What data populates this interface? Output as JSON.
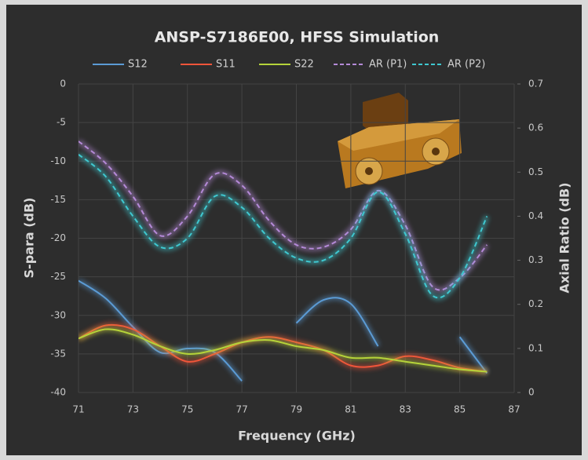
{
  "chart_data": {
    "type": "line",
    "title": "ANSP-S7186E00, HFSS Simulation",
    "x_label": "Frequency (GHz)",
    "y_label": "S-para (dB)",
    "y2_label": "Axial Ratio (dB)",
    "x": [
      71,
      72,
      73,
      74,
      75,
      76,
      77,
      78,
      79,
      80,
      81,
      82,
      83,
      84,
      85,
      86
    ],
    "xlim": [
      71,
      87
    ],
    "xticks": [
      71,
      73,
      75,
      77,
      79,
      81,
      83,
      85,
      87
    ],
    "ylim": [
      -40,
      0
    ],
    "yticks": [
      0,
      -5,
      -10,
      -15,
      -20,
      -25,
      -30,
      -35,
      -40
    ],
    "y2lim": [
      0,
      0.7
    ],
    "y2ticks": [
      0,
      0.1,
      0.2,
      0.3,
      0.4,
      0.5,
      0.6,
      0.7
    ],
    "grid": true,
    "series": [
      {
        "name": "S12",
        "color": "#5b9bd5",
        "values": [
          -25.5,
          -27.8,
          -31.5,
          -34.8,
          -34.3,
          -34.8,
          -38.5,
          null,
          -31,
          -28,
          -28.5,
          -34,
          null,
          null,
          -32.8,
          -37.5
        ]
      },
      {
        "name": "S11",
        "color": "#f0553a",
        "values": [
          -33,
          -31.3,
          -31.8,
          -34,
          -36,
          -35,
          -33.5,
          -32.8,
          -33.5,
          -34.5,
          -36.5,
          -36.5,
          -35.3,
          -35.8,
          -36.8,
          -37.3
        ]
      },
      {
        "name": "S22",
        "color": "#b5d33a",
        "values": [
          -33,
          -31.8,
          -32.5,
          -34,
          -35,
          -34.5,
          -33.5,
          -33.2,
          -34,
          -34.5,
          -35.5,
          -35.5,
          -36,
          -36.5,
          -37,
          -37.3
        ]
      },
      {
        "name": "AR (P1)",
        "color": "#b58ad8",
        "dashed": true,
        "axis": "y2",
        "values": [
          0.57,
          0.52,
          0.445,
          0.356,
          0.4,
          0.495,
          0.47,
          0.39,
          0.335,
          0.33,
          0.37,
          0.458,
          0.38,
          0.24,
          0.26,
          0.335
        ]
      },
      {
        "name": "AR (P2)",
        "color": "#3fc8d0",
        "dashed": true,
        "axis": "y2",
        "values": [
          0.54,
          0.49,
          0.4,
          0.33,
          0.35,
          0.445,
          0.42,
          0.35,
          0.305,
          0.3,
          0.35,
          0.455,
          0.36,
          0.22,
          0.26,
          0.4
        ]
      }
    ]
  }
}
